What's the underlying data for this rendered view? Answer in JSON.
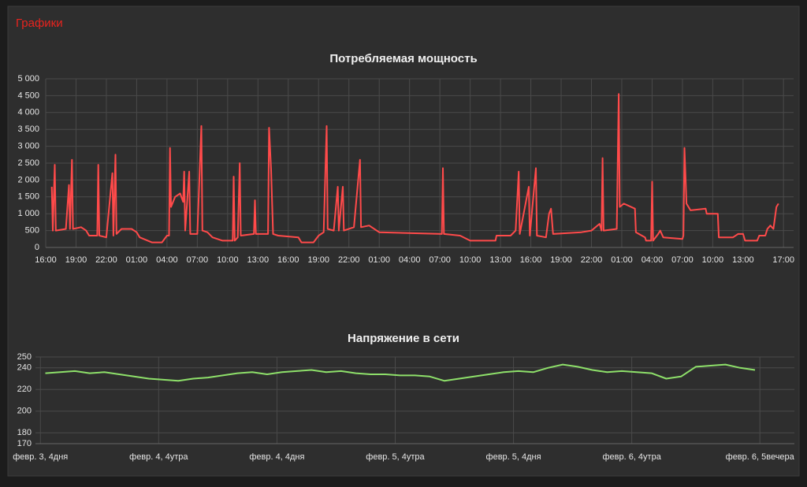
{
  "header": {
    "title": "Графики"
  },
  "chart_data": [
    {
      "type": "line",
      "title": "Потребляемая мощность",
      "xlim": [
        0,
        74
      ],
      "ylim": [
        0,
        5000
      ],
      "grid": true,
      "xticks": [
        {
          "value": 0,
          "label": "16:00"
        },
        {
          "value": 3,
          "label": "19:00"
        },
        {
          "value": 6,
          "label": "22:00"
        },
        {
          "value": 9,
          "label": "01:00"
        },
        {
          "value": 12,
          "label": "04:00"
        },
        {
          "value": 15,
          "label": "07:00"
        },
        {
          "value": 18,
          "label": "10:00"
        },
        {
          "value": 21,
          "label": "13:00"
        },
        {
          "value": 24,
          "label": "16:00"
        },
        {
          "value": 27,
          "label": "19:00"
        },
        {
          "value": 30,
          "label": "22:00"
        },
        {
          "value": 33,
          "label": "01:00"
        },
        {
          "value": 36,
          "label": "04:00"
        },
        {
          "value": 39,
          "label": "07:00"
        },
        {
          "value": 42,
          "label": "10:00"
        },
        {
          "value": 45,
          "label": "13:00"
        },
        {
          "value": 48,
          "label": "16:00"
        },
        {
          "value": 51,
          "label": "19:00"
        },
        {
          "value": 54,
          "label": "22:00"
        },
        {
          "value": 57,
          "label": "01:00"
        },
        {
          "value": 60,
          "label": "04:00"
        },
        {
          "value": 63,
          "label": "07:00"
        },
        {
          "value": 66,
          "label": "10:00"
        },
        {
          "value": 69,
          "label": "13:00"
        },
        {
          "value": 73,
          "label": "17:00"
        }
      ],
      "yticks": [
        0,
        500,
        {
          "value": 1000,
          "label": "1 000"
        },
        {
          "value": 1500,
          "label": "1 500"
        },
        {
          "value": 2000,
          "label": "2 000"
        },
        {
          "value": 2500,
          "label": "2 500"
        },
        {
          "value": 3000,
          "label": "3 000"
        },
        {
          "value": 3500,
          "label": "3 500"
        },
        {
          "value": 4000,
          "label": "4 000"
        },
        {
          "value": 4500,
          "label": "4 500"
        },
        {
          "value": 5000,
          "label": "5 000"
        }
      ],
      "series": [
        {
          "color": "#ff4a4a",
          "x": [
            0.6,
            0.7,
            0.9,
            1.0,
            2.0,
            2.3,
            2.4,
            2.6,
            2.7,
            3.5,
            4.0,
            4.3,
            5.1,
            5.2,
            5.3,
            6.0,
            6.6,
            6.7,
            6.9,
            7.0,
            7.5,
            8.5,
            9.0,
            9.3,
            10.5,
            11.5,
            12.0,
            12.2,
            12.3,
            12.4,
            12.8,
            13.3,
            13.6,
            13.7,
            13.8,
            14.2,
            14.3,
            15.0,
            15.4,
            15.5,
            16.0,
            16.5,
            17.5,
            18.5,
            18.6,
            18.7,
            19.0,
            19.2,
            19.3,
            20.6,
            20.7,
            20.8,
            22.0,
            22.1,
            22.3,
            22.5,
            23.0,
            25.0,
            25.3,
            26.5,
            27.0,
            27.5,
            27.8,
            27.9,
            28.5,
            28.9,
            29.0,
            29.4,
            29.5,
            30.5,
            31.1,
            31.2,
            32.0,
            33.0,
            39.2,
            39.3,
            39.4,
            41.0,
            42.0,
            44.5,
            44.6,
            46.0,
            46.5,
            46.8,
            46.9,
            47.8,
            47.9,
            48.5,
            48.6,
            49.5,
            49.8,
            50.0,
            50.2,
            53.0,
            54.0,
            54.8,
            55.0,
            55.1,
            55.2,
            56.5,
            56.7,
            56.8,
            57.2,
            58.3,
            58.4,
            59.3,
            59.4,
            59.9,
            60.0,
            60.1,
            60.6,
            60.8,
            61.1,
            63.0,
            63.1,
            63.2,
            63.4,
            63.8,
            65.3,
            65.4,
            66.5,
            66.6,
            68.0,
            68.5,
            69.0,
            69.2,
            70.4,
            70.6,
            71.2,
            71.4,
            71.7,
            72.0,
            72.3,
            72.5
          ],
          "values": [
            1800,
            500,
            2450,
            500,
            550,
            1850,
            550,
            2600,
            550,
            600,
            500,
            350,
            350,
            2450,
            350,
            300,
            2200,
            350,
            2750,
            400,
            550,
            550,
            450,
            300,
            150,
            150,
            350,
            350,
            2950,
            1200,
            1500,
            1600,
            1350,
            2250,
            500,
            2250,
            400,
            400,
            3600,
            500,
            450,
            300,
            200,
            200,
            2100,
            200,
            300,
            2500,
            350,
            400,
            1400,
            400,
            400,
            3550,
            2300,
            400,
            350,
            300,
            150,
            150,
            350,
            450,
            3600,
            550,
            500,
            1800,
            500,
            1800,
            500,
            600,
            2600,
            600,
            650,
            450,
            400,
            2350,
            400,
            350,
            200,
            200,
            350,
            350,
            500,
            2250,
            400,
            1800,
            350,
            2350,
            350,
            300,
            1000,
            1150,
            400,
            450,
            500,
            700,
            500,
            2650,
            500,
            550,
            4550,
            1200,
            1300,
            1150,
            450,
            300,
            200,
            200,
            1950,
            200,
            400,
            500,
            300,
            250,
            350,
            2950,
            1300,
            1100,
            1150,
            1000,
            1000,
            300,
            300,
            400,
            400,
            200,
            200,
            350,
            350,
            550,
            650,
            550,
            1200,
            1300
          ]
        }
      ]
    },
    {
      "type": "line",
      "title": "Напряжение в сети",
      "xlim": [
        -0.5,
        76.5
      ],
      "ylim": [
        170,
        250
      ],
      "grid": true,
      "xticks": [
        {
          "value": 0,
          "label": "февр. 3, 4дня"
        },
        {
          "value": 12,
          "label": "февр. 4, 4утра"
        },
        {
          "value": 24,
          "label": "февр. 4, 4дня"
        },
        {
          "value": 36,
          "label": "февр. 5, 4утра"
        },
        {
          "value": 48,
          "label": "февр. 5, 4дня"
        },
        {
          "value": 60,
          "label": "февр. 6, 4утра"
        },
        {
          "value": 73,
          "label": "февр. 6, 5вечера"
        }
      ],
      "yticks": [
        170,
        180,
        200,
        220,
        240,
        250
      ],
      "series": [
        {
          "color": "#8ee06a",
          "x": [
            0.5,
            2,
            3.5,
            5,
            6.5,
            8,
            9.5,
            11,
            12.5,
            14,
            15.5,
            17,
            18.5,
            20,
            21.5,
            23,
            24.5,
            26,
            27.5,
            29,
            30.5,
            32,
            33.5,
            35,
            36.5,
            38,
            39.5,
            41,
            42.5,
            44,
            45.5,
            47,
            48.5,
            50,
            51.5,
            53,
            54.5,
            56,
            57.5,
            59,
            60.5,
            62,
            63.5,
            65,
            66.5,
            68,
            69.5,
            71,
            72.5
          ],
          "values": [
            235,
            236,
            237,
            235,
            236,
            234,
            232,
            230,
            229,
            228,
            230,
            231,
            233,
            235,
            236,
            234,
            236,
            237,
            238,
            236,
            237,
            235,
            234,
            234,
            233,
            233,
            232,
            228,
            230,
            232,
            234,
            236,
            237,
            236,
            240,
            243,
            241,
            238,
            236,
            237,
            236,
            235,
            230,
            232,
            241,
            242,
            243,
            240,
            238
          ]
        }
      ]
    }
  ]
}
